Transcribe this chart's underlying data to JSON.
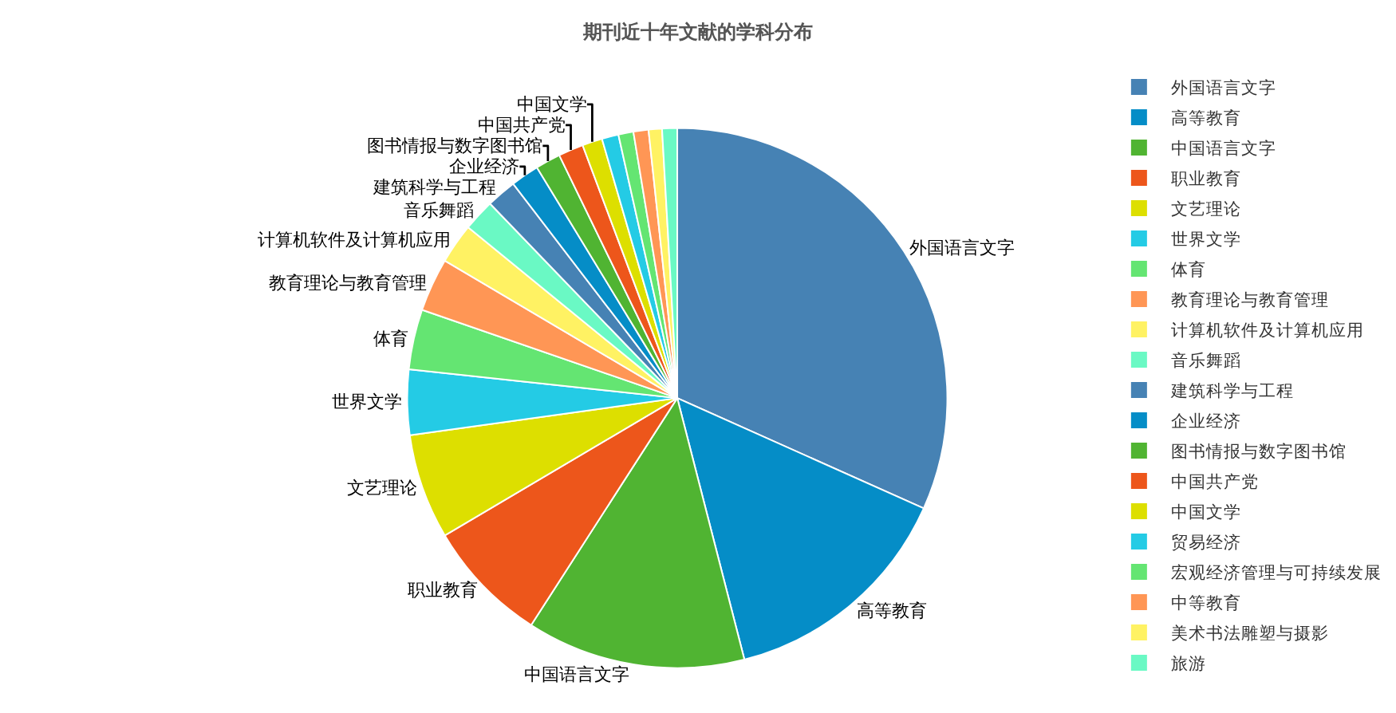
{
  "chart_data": {
    "type": "pie",
    "title": "期刊近十年文献的学科分布",
    "categories": [
      "外国语言文字",
      "高等教育",
      "中国语言文字",
      "职业教育",
      "文艺理论",
      "世界文学",
      "体育",
      "教育理论与教育管理",
      "计算机软件及计算机应用",
      "音乐舞蹈",
      "建筑科学与工程",
      "企业经济",
      "图书情报与数字图书馆",
      "中国共产党",
      "中国文学",
      "贸易经济",
      "宏观经济管理与可持续发展",
      "中等教育",
      "美术书法雕塑与摄影",
      "旅游"
    ],
    "values": [
      31.7,
      14.3,
      13.1,
      7.4,
      6.3,
      3.9,
      3.6,
      3.2,
      2.4,
      1.9,
      1.8,
      1.7,
      1.5,
      1.5,
      1.2,
      1.0,
      0.9,
      0.9,
      0.8,
      0.9
    ],
    "value_labels": [
      "外国语言文字",
      "高等教育",
      "中国语言文字",
      "职业教育",
      "文艺理论",
      "世界文学",
      "体育",
      "教育理论与教育管理",
      "计算机软件及计算机应用",
      "音乐舞蹈",
      "建筑科学与工程",
      "企业经济",
      "图书情报与数字图书馆",
      "中国共产党",
      "中国文学",
      null,
      null,
      null,
      null,
      null
    ],
    "colors": [
      "#4682b4",
      "#058dc7",
      "#50b432",
      "#ed561b",
      "#dddf00",
      "#24cbe5",
      "#64e572",
      "#ff9655",
      "#fff263",
      "#6af9c4",
      "#4682b4",
      "#058dc7",
      "#50b432",
      "#ed561b",
      "#dddf00",
      "#24cbe5",
      "#64e572",
      "#ff9655",
      "#fff263",
      "#6af9c4"
    ],
    "legend": "right"
  }
}
